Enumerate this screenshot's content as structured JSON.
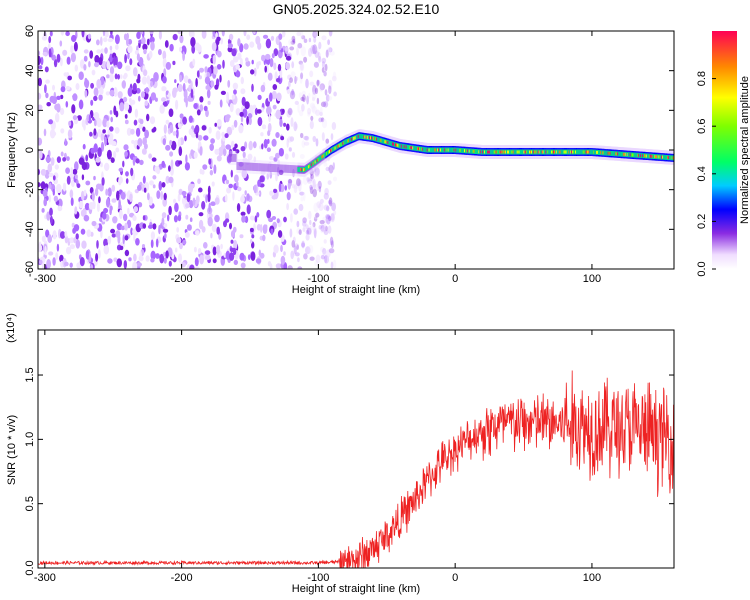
{
  "title": "GN05.2025.324.02.52.E10",
  "chart_data": [
    {
      "type": "heatmap",
      "xlabel": "Height of straight line (km)",
      "ylabel": "Frequency (Hz)",
      "xlim": [
        -305,
        160
      ],
      "ylim": [
        -60,
        60
      ],
      "xticks": [
        -300,
        -200,
        -100,
        0,
        100
      ],
      "xtick_labels": [
        "-300",
        "-200",
        "-100",
        "0",
        "100"
      ],
      "yticks": [
        -60,
        -40,
        -20,
        0,
        20,
        40,
        60
      ],
      "ytick_labels": [
        "-60",
        "-40",
        "-20",
        "0",
        "20",
        "40",
        "60"
      ],
      "colorbar": {
        "label": "Normalized spectral amplitude",
        "range": [
          0,
          1
        ],
        "ticks": [
          0,
          0.2,
          0.4,
          0.6,
          0.8
        ],
        "tick_labels": [
          "0.0",
          "0.2",
          "0.4",
          "0.6",
          "0.8"
        ]
      },
      "noise_region_x": [
        -305,
        -92
      ],
      "ridge": {
        "x": [
          -160,
          -110,
          -100,
          -90,
          -80,
          -70,
          -60,
          -50,
          -40,
          -20,
          0,
          20,
          40,
          60,
          80,
          100,
          120,
          140,
          160
        ],
        "y": [
          -8,
          -10,
          -5,
          0,
          4,
          7,
          6,
          4,
          2,
          0,
          0,
          -1,
          -1,
          -1,
          -1,
          -1,
          -2,
          -3,
          -4
        ]
      }
    },
    {
      "type": "line",
      "xlabel": "Height of straight line (km)",
      "ylabel": "SNR (10 * v/v)",
      "y_multiplier": "(x10⁴)",
      "xlim": [
        -305,
        160
      ],
      "ylim": [
        0,
        1.85
      ],
      "xticks": [
        -300,
        -200,
        -100,
        0,
        100
      ],
      "xtick_labels": [
        "-300",
        "-200",
        "-100",
        "0",
        "100"
      ],
      "yticks": [
        0,
        0.5,
        1.0,
        1.5
      ],
      "ytick_labels": [
        "0.0",
        "0.5",
        "1.0",
        "1.5"
      ],
      "series": [
        {
          "color": "#ee2222",
          "x": [
            -305,
            -250,
            -200,
            -150,
            -100,
            -80,
            -70,
            -60,
            -50,
            -40,
            -30,
            -20,
            -10,
            0,
            10,
            20,
            30,
            40,
            60,
            80,
            100,
            120,
            140,
            160
          ],
          "y": [
            0.04,
            0.04,
            0.04,
            0.04,
            0.04,
            0.05,
            0.08,
            0.15,
            0.25,
            0.38,
            0.52,
            0.68,
            0.82,
            0.92,
            1.0,
            1.07,
            1.1,
            1.12,
            1.13,
            1.12,
            1.1,
            1.1,
            1.05,
            1.0
          ]
        }
      ]
    }
  ]
}
